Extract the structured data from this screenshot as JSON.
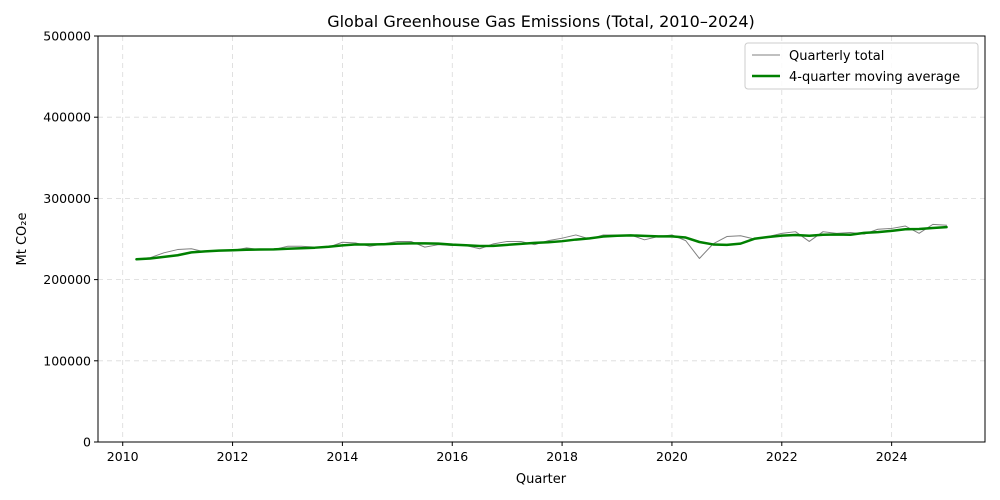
{
  "chart_data": {
    "type": "line",
    "title": "Global Greenhouse Gas Emissions (Total, 2010–2024)",
    "xlabel": "Quarter",
    "ylabel": "Mt CO₂e",
    "xlim": [
      2009.55,
      2025.7
    ],
    "ylim": [
      0,
      500000
    ],
    "xticks": [
      2010,
      2012,
      2014,
      2016,
      2018,
      2020,
      2022,
      2024
    ],
    "yticks": [
      0,
      100000,
      200000,
      300000,
      400000,
      500000
    ],
    "grid": true,
    "legend_position": "top-right",
    "series": [
      {
        "name": "Quarterly total",
        "color": "#808080",
        "style": "thin",
        "x": [
          2010.25,
          2010.5,
          2010.75,
          2011.0,
          2011.25,
          2011.5,
          2011.75,
          2012.0,
          2012.25,
          2012.5,
          2012.75,
          2013.0,
          2013.25,
          2013.5,
          2013.75,
          2014.0,
          2014.25,
          2014.5,
          2014.75,
          2015.0,
          2015.25,
          2015.5,
          2015.75,
          2016.0,
          2016.25,
          2016.5,
          2016.75,
          2017.0,
          2017.25,
          2017.5,
          2017.75,
          2018.0,
          2018.25,
          2018.5,
          2018.75,
          2019.0,
          2019.25,
          2019.5,
          2019.75,
          2020.0,
          2020.25,
          2020.5,
          2020.75,
          2021.0,
          2021.25,
          2021.5,
          2021.75,
          2022.0,
          2022.25,
          2022.5,
          2022.75,
          2023.0,
          2023.25,
          2023.5,
          2023.75,
          2024.0,
          2024.25,
          2024.5,
          2024.75,
          2025.0
        ],
        "values": [
          225000,
          227000,
          233000,
          237000,
          238000,
          234000,
          236000,
          236000,
          239000,
          237000,
          237000,
          241000,
          241000,
          240000,
          240000,
          246000,
          245000,
          241000,
          244000,
          247000,
          247000,
          240000,
          243000,
          242000,
          242000,
          238000,
          244000,
          247000,
          247000,
          243000,
          248000,
          251000,
          255000,
          250000,
          255000,
          255000,
          255000,
          249000,
          253000,
          255000,
          248000,
          226000,
          244000,
          253000,
          254000,
          250000,
          253000,
          257000,
          259000,
          247000,
          259000,
          257000,
          258000,
          256000,
          262000,
          263000,
          266000,
          257000,
          268000,
          267000
        ]
      },
      {
        "name": "4-quarter moving average",
        "color": "#008000",
        "style": "thick",
        "x": [
          2010.25,
          2010.5,
          2010.75,
          2011.0,
          2011.25,
          2011.5,
          2011.75,
          2012.0,
          2012.25,
          2012.5,
          2012.75,
          2013.0,
          2013.25,
          2013.5,
          2013.75,
          2014.0,
          2014.25,
          2014.5,
          2014.75,
          2015.0,
          2015.25,
          2015.5,
          2015.75,
          2016.0,
          2016.25,
          2016.5,
          2016.75,
          2017.0,
          2017.25,
          2017.5,
          2017.75,
          2018.0,
          2018.25,
          2018.5,
          2018.75,
          2019.0,
          2019.25,
          2019.5,
          2019.75,
          2020.0,
          2020.25,
          2020.5,
          2020.75,
          2021.0,
          2021.25,
          2021.5,
          2021.75,
          2022.0,
          2022.25,
          2022.5,
          2022.75,
          2023.0,
          2023.25,
          2023.5,
          2023.75,
          2024.0,
          2024.25,
          2024.5,
          2024.75,
          2025.0
        ],
        "values": [
          225000,
          226000,
          228000,
          230000,
          233500,
          234800,
          235700,
          236100,
          236700,
          237000,
          237200,
          238000,
          238600,
          239300,
          240500,
          242100,
          243300,
          243300,
          243500,
          244300,
          244600,
          244600,
          244300,
          243000,
          242300,
          241300,
          241500,
          242800,
          244000,
          245300,
          246000,
          247300,
          249300,
          250800,
          253000,
          254000,
          254500,
          253800,
          253200,
          253200,
          251800,
          246300,
          243300,
          242800,
          244300,
          250300,
          252500,
          254100,
          255000,
          254000,
          255300,
          255500,
          255300,
          257600,
          258400,
          260000,
          262000,
          262300,
          263500,
          264600
        ]
      }
    ]
  }
}
